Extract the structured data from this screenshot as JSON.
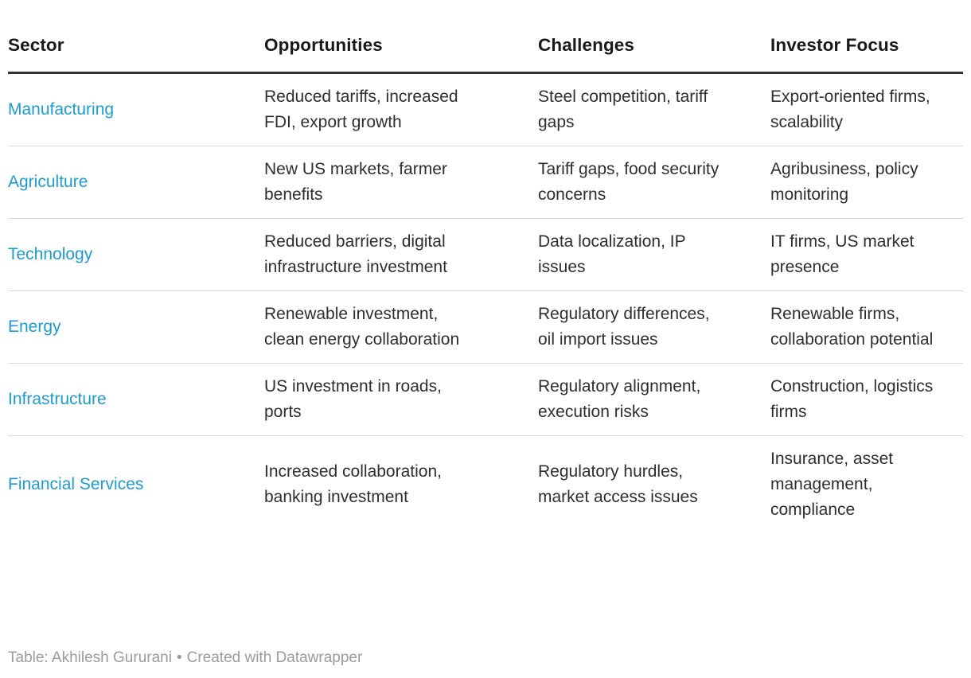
{
  "chart_data": {
    "type": "table",
    "columns": [
      "Sector",
      "Opportunities",
      "Challenges",
      "Investor Focus"
    ],
    "rows": [
      [
        "Manufacturing",
        "Reduced tariffs, increased FDI, export growth",
        "Steel competition, tariff gaps",
        "Export-oriented firms, scalability"
      ],
      [
        "Agriculture",
        "New US markets, farmer benefits",
        "Tariff gaps, food security concerns",
        "Agribusiness, policy monitoring"
      ],
      [
        "Technology",
        "Reduced barriers, digital infrastructure investment",
        "Data localization, IP issues",
        "IT firms, US market presence"
      ],
      [
        "Energy",
        "Renewable investment, clean energy collaboration",
        "Regulatory differences, oil import issues",
        "Renewable firms, collaboration potential"
      ],
      [
        "Infrastructure",
        "US investment in roads, ports",
        "Regulatory alignment, execution risks",
        "Construction, logistics firms"
      ],
      [
        "Financial Services",
        "Increased collaboration, banking investment",
        "Regulatory hurdles, market access issues",
        "Insurance, asset management, compliance"
      ]
    ],
    "layout_hints": {
      "header_rule": "thick dark line under header",
      "row_dividers": "thin light gray lines",
      "sector_column_color": "cyan-blue"
    }
  },
  "footer": {
    "attribution": "Table: Akhilesh Gururani",
    "separator": "•",
    "credit": "Created with Datawrapper"
  },
  "colors": {
    "sector_accent": "#1D9CD3",
    "header_text": "#191919",
    "body_text": "#2E2E2E",
    "header_rule": "#333333",
    "row_divider": "#DDDDDD",
    "footer_text": "#9B9B9B",
    "background": "#FFFFFF"
  }
}
